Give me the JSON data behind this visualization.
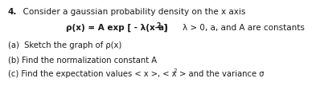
{
  "background_color": "#ffffff",
  "title_number": "4.",
  "title_text": "  Consider a gaussian probability density on the x axis",
  "formula_left": "ρ(x) = A exp [ - λ(x-a)",
  "formula_sup": "2",
  "formula_right": " ]",
  "condition": "λ > 0, a, and A are constants",
  "part_a": "(a)  Sketch the graph of ρ(x)",
  "part_b": "(b) Find the normalization constant A",
  "part_c": "(c) Find the expectation values < x >, < x",
  "part_c_sup": "2",
  "part_c_end": " > and the variance σ",
  "font_size_title": 7.5,
  "font_size_formula": 7.5,
  "font_size_parts": 7.2,
  "text_color": "#1a1a1a",
  "title_bold": true
}
